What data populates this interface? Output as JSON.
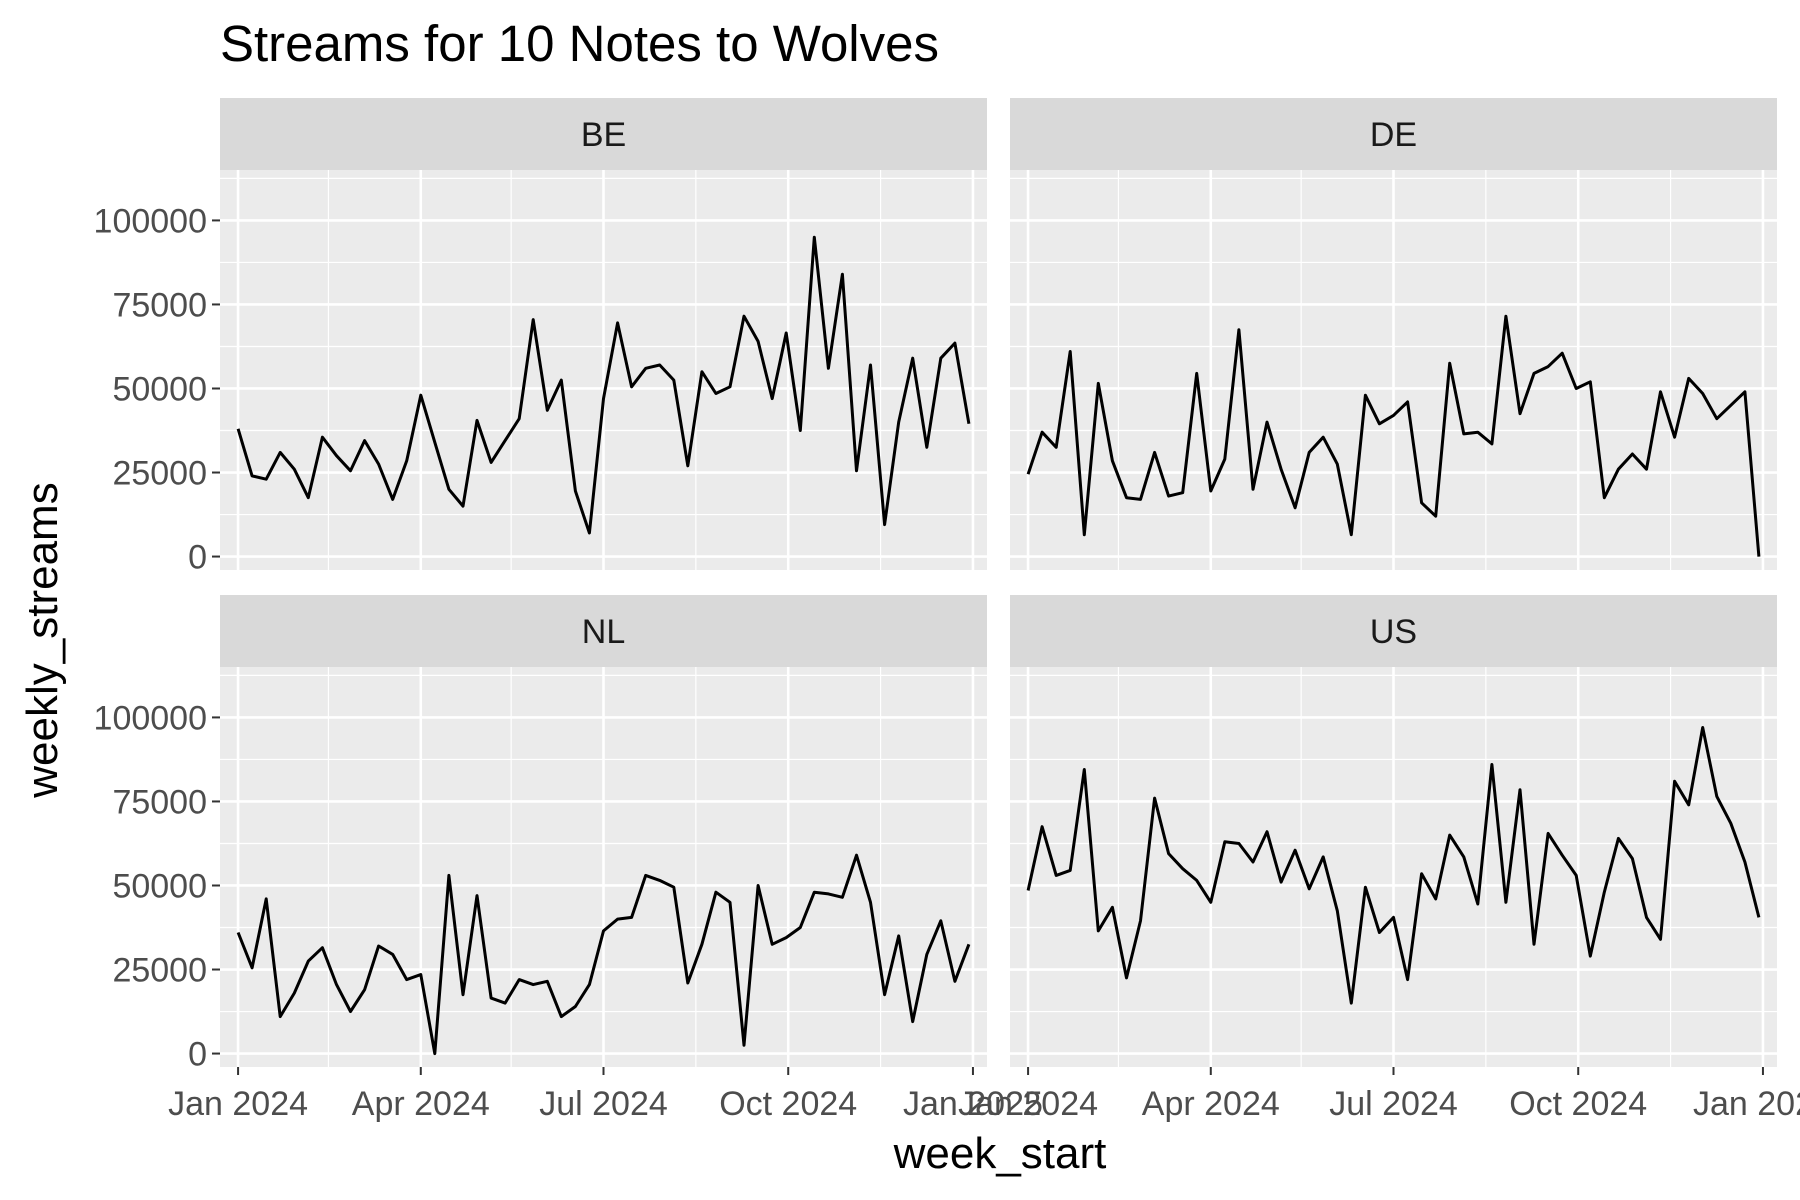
{
  "chart_data": {
    "type": "line",
    "title": "Streams for 10 Notes to Wolves",
    "xlabel": "week_start",
    "ylabel": "weekly_streams",
    "x_ticks": [
      "Jan 2024",
      "Apr 2024",
      "Jul 2024",
      "Oct 2024",
      "Jan 2025"
    ],
    "y_ticks": [
      0,
      25000,
      50000,
      75000,
      100000
    ],
    "ylim": [
      -4000,
      115000
    ],
    "xlim": [
      "2023-12-23",
      "2025-01-08"
    ],
    "x_start": "2024-01-01",
    "x_step_days": 7,
    "layout": "facet_wrap 2x2",
    "grid": true,
    "line_color": "#000000",
    "panel_color": "#ebebeb",
    "strip_color": "#d9d9d9",
    "panels": [
      {
        "name": "BE",
        "values": [
          38000,
          24000,
          23000,
          31000,
          26000,
          17500,
          35500,
          30000,
          25500,
          34500,
          27500,
          17000,
          28500,
          48000,
          34000,
          20000,
          15000,
          40500,
          28000,
          34500,
          41000,
          70500,
          43500,
          52500,
          19500,
          7000,
          47000,
          69500,
          50500,
          56000,
          57000,
          52500,
          27000,
          55000,
          48500,
          50500,
          71500,
          64000,
          47000,
          66500,
          37500,
          95000,
          56000,
          84000,
          25500,
          57000,
          9500,
          40000,
          59000,
          32500,
          59000,
          63500,
          39500
        ]
      },
      {
        "name": "DE",
        "values": [
          24500,
          37000,
          32500,
          61000,
          6500,
          51500,
          28500,
          17500,
          17000,
          31000,
          18000,
          19000,
          54500,
          19500,
          29000,
          67500,
          20000,
          40000,
          26000,
          14500,
          31000,
          35500,
          27500,
          6500,
          48000,
          39500,
          42000,
          46000,
          16000,
          12000,
          57500,
          36500,
          37000,
          33500,
          71500,
          42500,
          54500,
          56500,
          60500,
          50000,
          52000,
          17500,
          26000,
          30500,
          26000,
          49000,
          35500,
          53000,
          48500,
          41000,
          45000,
          49000,
          0
        ]
      },
      {
        "name": "NL",
        "values": [
          36000,
          25500,
          46000,
          11000,
          18000,
          27500,
          31500,
          20500,
          12500,
          19000,
          32000,
          29500,
          22000,
          23500,
          0,
          53000,
          17500,
          47000,
          16500,
          15000,
          22000,
          20500,
          21500,
          11000,
          14000,
          20500,
          36500,
          40000,
          40500,
          53000,
          51500,
          49500,
          21000,
          32500,
          48000,
          45000,
          2500,
          50000,
          32500,
          34500,
          37500,
          48000,
          47500,
          46500,
          59000,
          45000,
          17500,
          35000,
          9500,
          29500,
          39500,
          21500,
          32500
        ]
      },
      {
        "name": "US",
        "values": [
          48500,
          67500,
          53000,
          54500,
          84500,
          36500,
          43500,
          22500,
          39500,
          76000,
          59500,
          55000,
          51500,
          45000,
          63000,
          62500,
          57000,
          66000,
          51000,
          60500,
          49000,
          58500,
          42500,
          15000,
          49500,
          36000,
          40500,
          22000,
          53500,
          46000,
          65000,
          58500,
          44500,
          86000,
          45000,
          78500,
          32500,
          65500,
          59000,
          53000,
          29000,
          48000,
          64000,
          58000,
          40500,
          34000,
          81000,
          74000,
          97000,
          76500,
          68500,
          57000,
          40500
        ]
      }
    ]
  }
}
